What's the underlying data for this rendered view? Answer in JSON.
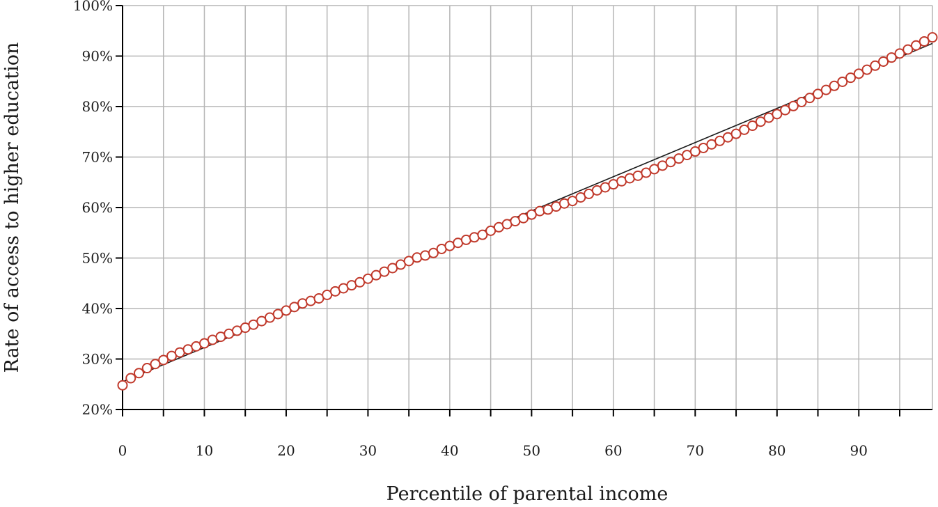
{
  "chart_data": {
    "type": "scatter",
    "title": "",
    "xlabel": "Percentile of parental income",
    "ylabel": "Rate of access to higher education",
    "xlim": [
      0,
      99
    ],
    "ylim": [
      0.2,
      1.0
    ],
    "x_ticks": [
      0,
      10,
      20,
      30,
      40,
      50,
      60,
      70,
      80,
      90
    ],
    "x_tick_labels": [
      "0",
      "10",
      "20",
      "30",
      "40",
      "50",
      "60",
      "70",
      "80",
      "90"
    ],
    "x_gridlines": [
      0,
      5,
      10,
      15,
      20,
      25,
      30,
      35,
      40,
      45,
      50,
      55,
      60,
      65,
      70,
      75,
      80,
      85,
      90,
      95
    ],
    "y_ticks": [
      0.2,
      0.3,
      0.4,
      0.5,
      0.6,
      0.7,
      0.8,
      0.9,
      1.0
    ],
    "y_tick_labels": [
      "20%",
      "30%",
      "40%",
      "50%",
      "60%",
      "70%",
      "80%",
      "90%",
      "100%"
    ],
    "grid": true,
    "legend": "none",
    "marker_color": "#c0392b",
    "trend_color": "#1a1a1a",
    "series": [
      {
        "x": [
          0,
          1,
          2,
          3,
          4,
          5,
          6,
          7,
          8,
          9,
          10,
          11,
          12,
          13,
          14,
          15,
          16,
          17,
          18,
          19,
          20,
          21,
          22,
          23,
          24,
          25,
          26,
          27,
          28,
          29,
          30,
          31,
          32,
          33,
          34,
          35,
          36,
          37,
          38,
          39,
          40,
          41,
          42,
          43,
          44,
          45,
          46,
          47,
          48,
          49,
          50,
          51,
          52,
          53,
          54,
          55,
          56,
          57,
          58,
          59,
          60,
          61,
          62,
          63,
          64,
          65,
          66,
          67,
          68,
          69,
          70,
          71,
          72,
          73,
          74,
          75,
          76,
          77,
          78,
          79,
          80,
          81,
          82,
          83,
          84,
          85,
          86,
          87,
          88,
          89,
          90,
          91,
          92,
          93,
          94,
          95,
          96,
          97,
          98,
          99
        ],
        "y": [
          0.248,
          0.262,
          0.272,
          0.282,
          0.29,
          0.298,
          0.306,
          0.313,
          0.319,
          0.325,
          0.331,
          0.338,
          0.344,
          0.35,
          0.356,
          0.362,
          0.368,
          0.375,
          0.382,
          0.389,
          0.396,
          0.403,
          0.41,
          0.415,
          0.42,
          0.427,
          0.434,
          0.44,
          0.446,
          0.452,
          0.459,
          0.466,
          0.473,
          0.48,
          0.487,
          0.494,
          0.501,
          0.505,
          0.51,
          0.518,
          0.524,
          0.53,
          0.536,
          0.541,
          0.546,
          0.554,
          0.561,
          0.567,
          0.573,
          0.579,
          0.586,
          0.593,
          0.596,
          0.602,
          0.608,
          0.613,
          0.62,
          0.627,
          0.634,
          0.64,
          0.646,
          0.652,
          0.658,
          0.663,
          0.669,
          0.676,
          0.683,
          0.69,
          0.697,
          0.704,
          0.711,
          0.718,
          0.725,
          0.732,
          0.739,
          0.746,
          0.754,
          0.762,
          0.77,
          0.778,
          0.785,
          0.793,
          0.801,
          0.809,
          0.817,
          0.825,
          0.833,
          0.841,
          0.849,
          0.857,
          0.865,
          0.873,
          0.881,
          0.889,
          0.897,
          0.905,
          0.913,
          0.921,
          0.929,
          0.937
        ]
      }
    ],
    "trend_line": {
      "x": [
        0,
        99
      ],
      "y": [
        0.255,
        0.925
      ]
    }
  }
}
